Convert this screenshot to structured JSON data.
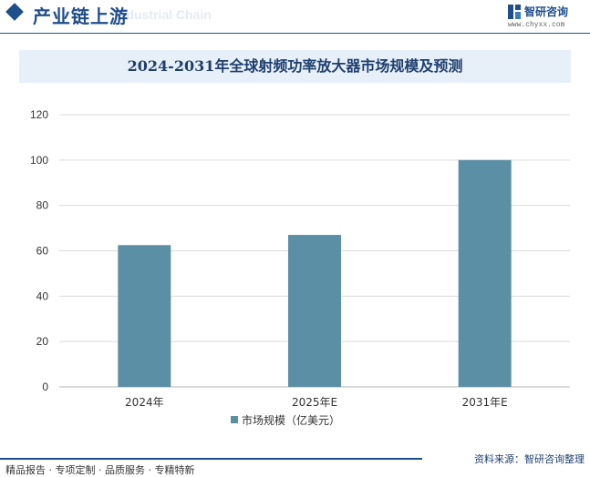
{
  "header": {
    "title": "产业链上游",
    "shadow_text": "Industrial Chain"
  },
  "logo": {
    "name": "智研咨询",
    "url": "www.chyxx.com"
  },
  "chart_data": {
    "type": "bar",
    "title": "2024-2031年全球射频功率放大器市场规模及预测",
    "categories": [
      "2024年",
      "2025年E",
      "2031年E"
    ],
    "series": [
      {
        "name": "市场规模（亿美元）",
        "values": [
          62.5,
          67,
          100
        ],
        "color": "#5b8fa6"
      }
    ],
    "ylim": [
      0,
      120
    ],
    "yticks": [
      "0",
      "20",
      "40",
      "60",
      "80",
      "100",
      "120"
    ],
    "grid": true,
    "legend": "bottom"
  },
  "footer": {
    "left_text": "精品报告 · 专项定制 · 品质服务 · 专精特新",
    "source": "资料来源：智研咨询整理"
  }
}
